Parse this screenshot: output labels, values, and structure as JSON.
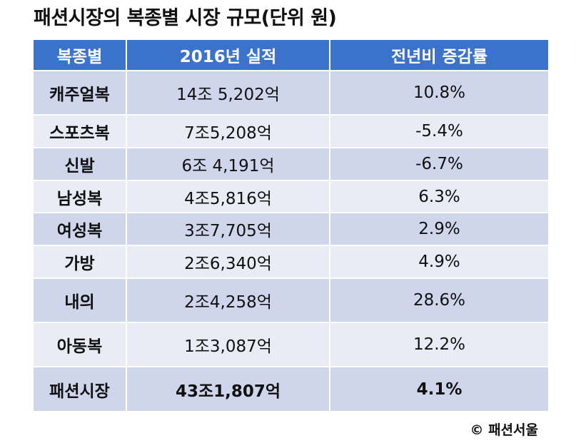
{
  "title": "패션시장의 복종별 시장 규모(단위 원)",
  "table": {
    "headers": [
      "복종별",
      "2016년 실적",
      "전년비 증감률"
    ],
    "rows": [
      {
        "category": "캐주얼복",
        "sales": "14조 5,202억",
        "change": "10.8%"
      },
      {
        "category": "스포츠복",
        "sales": "7조5,208억",
        "change": "-5.4%"
      },
      {
        "category": "신발",
        "sales": "6조 4,191억",
        "change": "-6.7%"
      },
      {
        "category": "남성복",
        "sales": "4조5,816억",
        "change": "6.3%"
      },
      {
        "category": "여성복",
        "sales": "3조7,705억",
        "change": "2.9%"
      },
      {
        "category": "가방",
        "sales": "2조6,340억",
        "change": "4.9%"
      },
      {
        "category": "내의",
        "sales": "2조4,258억",
        "change": "28.6%"
      },
      {
        "category": "아동복",
        "sales": "1조3,087억",
        "change": "12.2%"
      },
      {
        "category": "패션시장",
        "sales": "43조1,807억",
        "change": "4.1%"
      }
    ]
  },
  "credit": "© 패션서울",
  "colors": {
    "header_bg": "#3a72cc",
    "row_dark": "#cfd5ea",
    "row_light": "#e9ebf5"
  }
}
